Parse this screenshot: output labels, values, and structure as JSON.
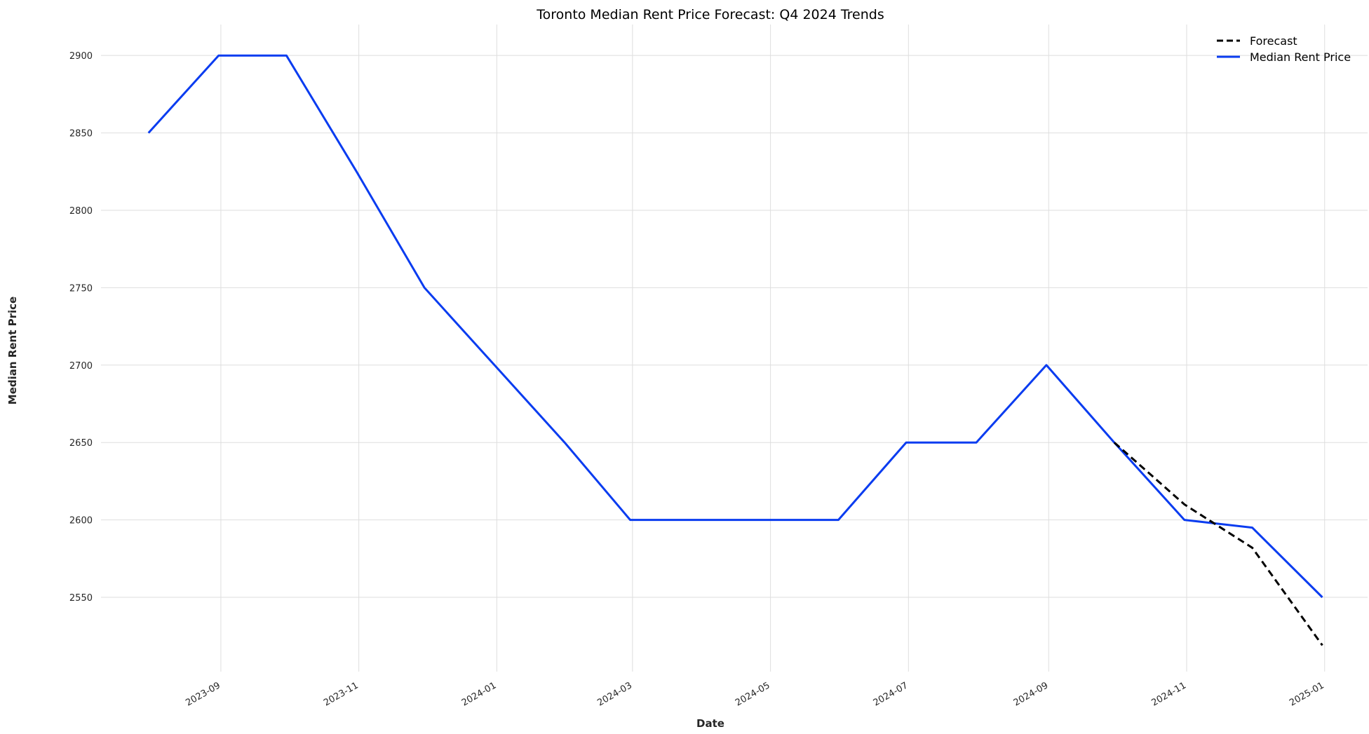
{
  "chart_data": {
    "type": "line",
    "title": "Toronto Median Rent Price Forecast: Q4 2024 Trends",
    "xlabel": "Date",
    "ylabel": "Median Rent Price",
    "ylim": [
      2502,
      2920
    ],
    "xlim": [
      "2023-07-10",
      "2025-01-20"
    ],
    "grid": true,
    "legend_position": "top-right",
    "x_ticks": [
      "2023-09",
      "2023-11",
      "2024-01",
      "2024-03",
      "2024-05",
      "2024-07",
      "2024-09",
      "2024-11",
      "2025-01"
    ],
    "y_ticks": [
      2550,
      2600,
      2650,
      2700,
      2750,
      2800,
      2850,
      2900
    ],
    "series": [
      {
        "name": "Forecast",
        "color": "#000000",
        "style": "dashed",
        "points": [
          {
            "x": "2024-09-30",
            "y": 2650
          },
          {
            "x": "2024-10-31",
            "y": 2610
          },
          {
            "x": "2024-11-30",
            "y": 2582
          },
          {
            "x": "2024-12-31",
            "y": 2519
          }
        ]
      },
      {
        "name": "Median Rent Price",
        "color": "#0a3cf0",
        "style": "solid",
        "points": [
          {
            "x": "2023-07-31",
            "y": 2850
          },
          {
            "x": "2023-08-31",
            "y": 2900
          },
          {
            "x": "2023-09-30",
            "y": 2900
          },
          {
            "x": "2023-10-31",
            "y": 2825
          },
          {
            "x": "2023-11-30",
            "y": 2750
          },
          {
            "x": "2023-12-31",
            "y": 2700
          },
          {
            "x": "2024-01-31",
            "y": 2650
          },
          {
            "x": "2024-02-29",
            "y": 2600
          },
          {
            "x": "2024-03-31",
            "y": 2600
          },
          {
            "x": "2024-04-30",
            "y": 2600
          },
          {
            "x": "2024-05-31",
            "y": 2600
          },
          {
            "x": "2024-06-30",
            "y": 2650
          },
          {
            "x": "2024-07-31",
            "y": 2650
          },
          {
            "x": "2024-08-31",
            "y": 2700
          },
          {
            "x": "2024-09-30",
            "y": 2650
          },
          {
            "x": "2024-10-31",
            "y": 2600
          },
          {
            "x": "2024-11-30",
            "y": 2595
          },
          {
            "x": "2024-12-31",
            "y": 2550
          }
        ]
      }
    ]
  }
}
